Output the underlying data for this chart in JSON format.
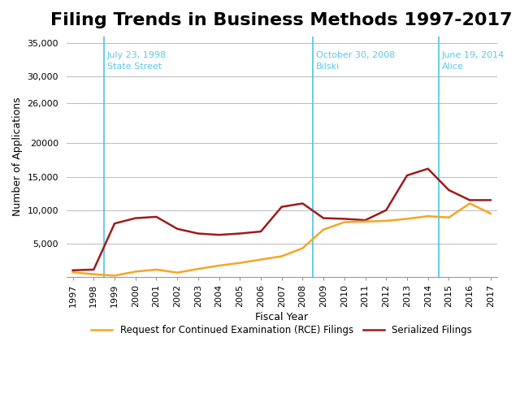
{
  "title": "Filing Trends in Business Methods 1997-2017",
  "xlabel": "Fiscal Year",
  "ylabel": "Number of Applications",
  "years": [
    1997,
    1998,
    1999,
    2000,
    2001,
    2002,
    2003,
    2004,
    2005,
    2006,
    2007,
    2008,
    2009,
    2010,
    2011,
    2012,
    2013,
    2014,
    2015,
    2016,
    2017
  ],
  "serialized_filings": [
    1000,
    1100,
    8000,
    8800,
    9000,
    7200,
    6500,
    6300,
    6500,
    6800,
    10500,
    11000,
    8800,
    8700,
    8500,
    10000,
    15200,
    16200,
    13000,
    11500,
    11500
  ],
  "rce_filings": [
    700,
    400,
    200,
    800,
    1100,
    650,
    1200,
    1700,
    2100,
    2600,
    3100,
    4300,
    7100,
    8200,
    8300,
    8400,
    8700,
    9100,
    8900,
    11000,
    9500
  ],
  "serialized_color": "#9B1C1C",
  "rce_color": "#F5A623",
  "vline_color": "#5BC8E8",
  "vline_positions": [
    1998.5,
    2008.5,
    2014.5
  ],
  "vline_labels": [
    "July 23, 1998\nState Street",
    "October 30, 2008\nBilski",
    "June 19, 2014\nAlice"
  ],
  "ylim": [
    0,
    36000
  ],
  "yticks": [
    0,
    5000,
    10000,
    15000,
    20000,
    26000,
    30000,
    35000
  ],
  "ytick_labels": [
    "",
    "5,000",
    "10,000",
    "15,000",
    "20000",
    "26,000",
    "30,000",
    "35,000"
  ],
  "background_color": "#FFFFFF",
  "grid_color": "#BBBBBB",
  "title_fontsize": 16,
  "axis_label_fontsize": 9,
  "tick_fontsize": 8,
  "legend_label_rce": "Request for Continued Examination (RCE) Filings",
  "legend_label_serialized": "Serialized Filings",
  "annotation_color": "#5BC8E8",
  "annotation_fontsize": 8
}
